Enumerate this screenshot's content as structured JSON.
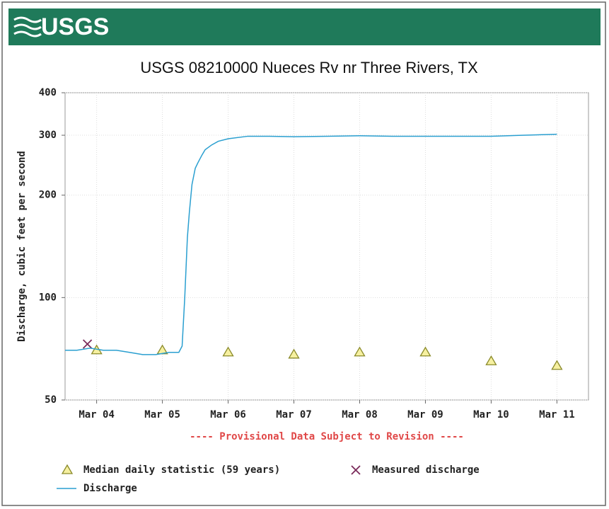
{
  "header": {
    "logo": "USGS"
  },
  "chart_data": {
    "type": "line",
    "title": "USGS 08210000 Nueces Rv nr Three Rivers, TX",
    "y_label": "Discharge, cubic feet per second",
    "annotation": "---- Provisional Data Subject to Revision ----",
    "yscale": "log",
    "ylim": [
      50,
      400
    ],
    "yticks": [
      50,
      100,
      200,
      300,
      400
    ],
    "xlim": [
      -0.48,
      7.48
    ],
    "xticks": [
      {
        "value": 0,
        "label": "Mar 04"
      },
      {
        "value": 1,
        "label": "Mar 05"
      },
      {
        "value": 2,
        "label": "Mar 06"
      },
      {
        "value": 3,
        "label": "Mar 07"
      },
      {
        "value": 4,
        "label": "Mar 08"
      },
      {
        "value": 5,
        "label": "Mar 09"
      },
      {
        "value": 6,
        "label": "Mar 10"
      },
      {
        "value": 7,
        "label": "Mar 11"
      }
    ],
    "grid": true,
    "series": [
      {
        "name": "Median daily statistic (59 years)",
        "marker": "triangle",
        "color": "#8a8a2a",
        "x": [
          0,
          1,
          2,
          3,
          4,
          5,
          6,
          7
        ],
        "values": [
          70,
          70,
          69,
          68,
          69,
          69,
          65,
          63
        ]
      },
      {
        "name": "Measured discharge",
        "marker": "x",
        "color": "#7a2a5a",
        "x": [
          -0.14
        ],
        "values": [
          73
        ]
      },
      {
        "name": "Discharge",
        "marker": "line",
        "color": "#2a9fd0",
        "x": [
          -0.48,
          -0.3,
          -0.1,
          0.1,
          0.3,
          0.5,
          0.7,
          0.9,
          1.1,
          1.25,
          1.3,
          1.34,
          1.38,
          1.41,
          1.45,
          1.5,
          1.54,
          1.6,
          1.65,
          1.75,
          1.85,
          2.0,
          2.3,
          2.6,
          3.0,
          3.5,
          4.0,
          4.5,
          5.0,
          5.5,
          6.0,
          6.5,
          7.0
        ],
        "values": [
          70,
          70,
          71,
          70,
          70,
          69,
          68,
          68,
          69,
          69,
          72,
          100,
          150,
          178,
          215,
          240,
          249,
          262,
          272,
          281,
          288,
          293,
          298,
          298,
          297,
          298,
          299,
          298,
          298,
          298,
          298,
          300,
          302
        ]
      }
    ]
  }
}
